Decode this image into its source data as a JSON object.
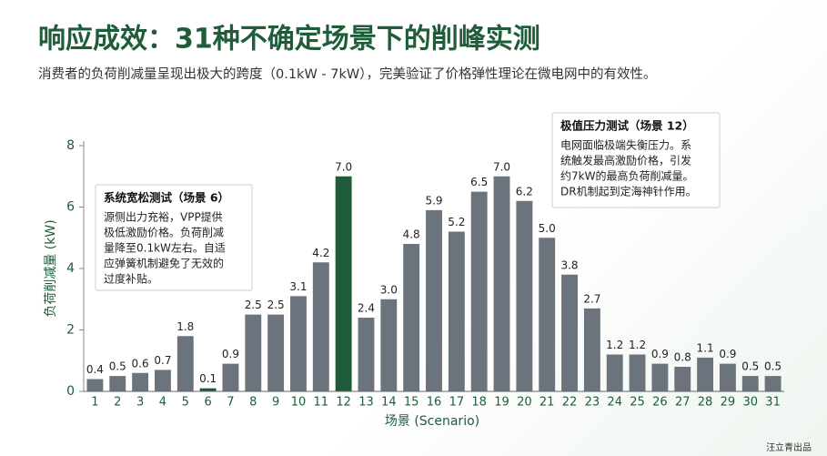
{
  "chart_data": {
    "type": "bar",
    "title": "响应成效：31种不确定场景下的削峰实测",
    "subtitle": "消费者的负荷削减量呈现出极大的跨度（0.1kW - 7kW），完美验证了价格弹性理论在微电网中的有效性。",
    "ylabel": "负荷削减量 (kW)",
    "xlabel": "场景 (Scenario)",
    "categories": [
      "1",
      "2",
      "3",
      "4",
      "5",
      "6",
      "7",
      "8",
      "9",
      "10",
      "11",
      "12",
      "13",
      "14",
      "15",
      "16",
      "17",
      "18",
      "19",
      "20",
      "21",
      "22",
      "23",
      "24",
      "25",
      "26",
      "27",
      "28",
      "29",
      "30",
      "31"
    ],
    "values": [
      0.4,
      0.5,
      0.6,
      0.7,
      1.8,
      0.1,
      0.9,
      2.5,
      2.5,
      3.1,
      4.2,
      7.0,
      2.4,
      3.0,
      4.8,
      5.9,
      5.2,
      6.5,
      7.0,
      6.2,
      5.0,
      3.8,
      2.7,
      1.2,
      1.2,
      0.9,
      0.8,
      1.1,
      0.9,
      0.5,
      0.5
    ],
    "value_labels": [
      "0.4",
      "0.5",
      "0.6",
      "0.7",
      "1.8",
      "0.1",
      "0.9",
      "2.5",
      "2.5",
      "3.1",
      "4.2",
      "7.0",
      "2.4",
      "3.0",
      "4.8",
      "5.9",
      "5.2",
      "6.5",
      "7.0",
      "6.2",
      "5.0",
      "3.8",
      "2.7",
      "1.2",
      "1.2",
      "0.9",
      "0.8",
      "1.1",
      "0.9",
      "0.5",
      "0.5"
    ],
    "colors": [
      "#6b737d",
      "#6b737d",
      "#6b737d",
      "#6b737d",
      "#6b737d",
      "#1e5c3a",
      "#6b737d",
      "#6b737d",
      "#6b737d",
      "#6b737d",
      "#6b737d",
      "#1e5c3a",
      "#6b737d",
      "#6b737d",
      "#6b737d",
      "#6b737d",
      "#6b737d",
      "#6b737d",
      "#6b737d",
      "#6b737d",
      "#6b737d",
      "#6b737d",
      "#6b737d",
      "#6b737d",
      "#6b737d",
      "#6b737d",
      "#6b737d",
      "#6b737d",
      "#6b737d",
      "#6b737d",
      "#6b737d"
    ],
    "ylim": [
      0,
      8
    ],
    "yticks": [
      0,
      2,
      4,
      6,
      8
    ],
    "annotations": [
      {
        "title": "系统宽松测试（场景 6）",
        "lines": [
          "源侧出力充裕，VPP提供",
          "极低激励价格。负荷削减",
          "量降至0.1kW左右。自适",
          "应弹簧机制避免了无效的",
          "过度补贴。"
        ]
      },
      {
        "title": "极值压力测试（场景 12）",
        "lines": [
          "电网面临极端失衡压力。系",
          "统触发最高激励价格，引发",
          "约7kW的最高负荷削减量。",
          "DR机制起到定海神针作用。"
        ]
      }
    ],
    "footer": "汪立青出品"
  }
}
